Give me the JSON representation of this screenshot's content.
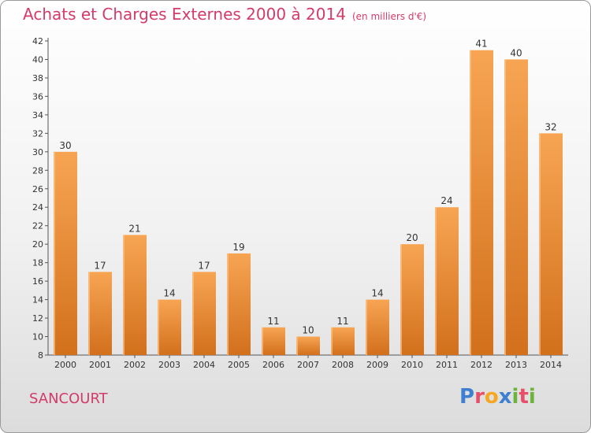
{
  "header": {
    "title": "Achats et Charges Externes 2000 à 2014",
    "subtitle": "(en milliers d'€)"
  },
  "footer": {
    "city": "SANCOURT",
    "logo": "Proxiti"
  },
  "colors": {
    "bar_light": "#f7a553",
    "bar_dark": "#d2701c",
    "title": "#d23b6a"
  },
  "chart_data": {
    "type": "bar",
    "categories": [
      "2000",
      "2001",
      "2002",
      "2003",
      "2004",
      "2005",
      "2006",
      "2007",
      "2008",
      "2009",
      "2010",
      "2011",
      "2012",
      "2013",
      "2014"
    ],
    "values": [
      30,
      17,
      21,
      14,
      17,
      19,
      11,
      10,
      11,
      14,
      20,
      24,
      41,
      40,
      32
    ],
    "title": "Achats et Charges Externes 2000 à 2014",
    "subtitle": "(en milliers d'€)",
    "xlabel": "",
    "ylabel": "",
    "ylim": [
      8,
      42
    ],
    "yticks": [
      8,
      10,
      12,
      14,
      16,
      18,
      20,
      22,
      24,
      26,
      28,
      30,
      32,
      34,
      36,
      38,
      40,
      42
    ],
    "grid": false,
    "legend": "none"
  }
}
